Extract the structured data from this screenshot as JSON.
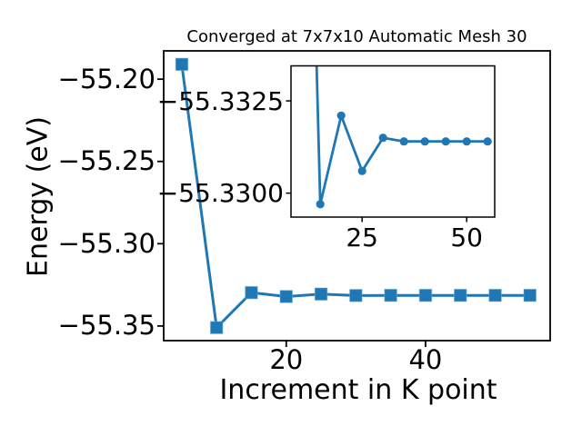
{
  "figure": {
    "background": "#ffffff",
    "line_color": "#1f77b4",
    "marker_edge_color": "#6baed6",
    "text_color": "#000000",
    "axis_color": "#000000"
  },
  "chart_data": {
    "type": "line",
    "title": "Converged at 7x7x10 Automatic Mesh 30",
    "xlabel": "Increment in K point",
    "ylabel": "Energy (eV)",
    "marker": "square",
    "line_color": "#1f77b4",
    "x": [
      5,
      10,
      15,
      20,
      25,
      30,
      35,
      40,
      45,
      50,
      55
    ],
    "y": [
      -55.191,
      -55.351,
      -55.3297,
      -55.3321,
      -55.3306,
      -55.3315,
      -55.3314,
      -55.3314,
      -55.3314,
      -55.3314,
      -55.3314
    ],
    "xlim": [
      2.4,
      57.9
    ],
    "ylim": [
      -55.3589,
      -55.1828
    ],
    "xticks": {
      "values": [
        20,
        40
      ],
      "labels": [
        "20",
        "40"
      ]
    },
    "yticks": {
      "values": [
        -55.2,
        -55.25,
        -55.3,
        -55.35
      ],
      "labels": [
        "−55.20",
        "−55.25",
        "−55.30",
        "−55.35"
      ]
    },
    "grid": false,
    "legend": null,
    "inset": {
      "type": "line",
      "marker": "circle",
      "line_color": "#1f77b4",
      "x": [
        10,
        15,
        20,
        25,
        30,
        35,
        40,
        45,
        50,
        55
      ],
      "y": [
        -55.351,
        -55.3297,
        -55.3321,
        -55.3306,
        -55.3315,
        -55.3314,
        -55.3314,
        -55.3314,
        -55.3314,
        -55.3314
      ],
      "xlim": [
        8.0,
        56.7
      ],
      "ylim_bottom": -55.32935,
      "ylim_top": -55.33345,
      "y_axis_inverted": true,
      "xticks": {
        "values": [
          25,
          50
        ],
        "labels": [
          "25",
          "50"
        ]
      },
      "yticks": {
        "values": [
          -55.3325,
          -55.33
        ],
        "labels": [
          "−55.3325",
          "−55.3300"
        ]
      }
    }
  }
}
